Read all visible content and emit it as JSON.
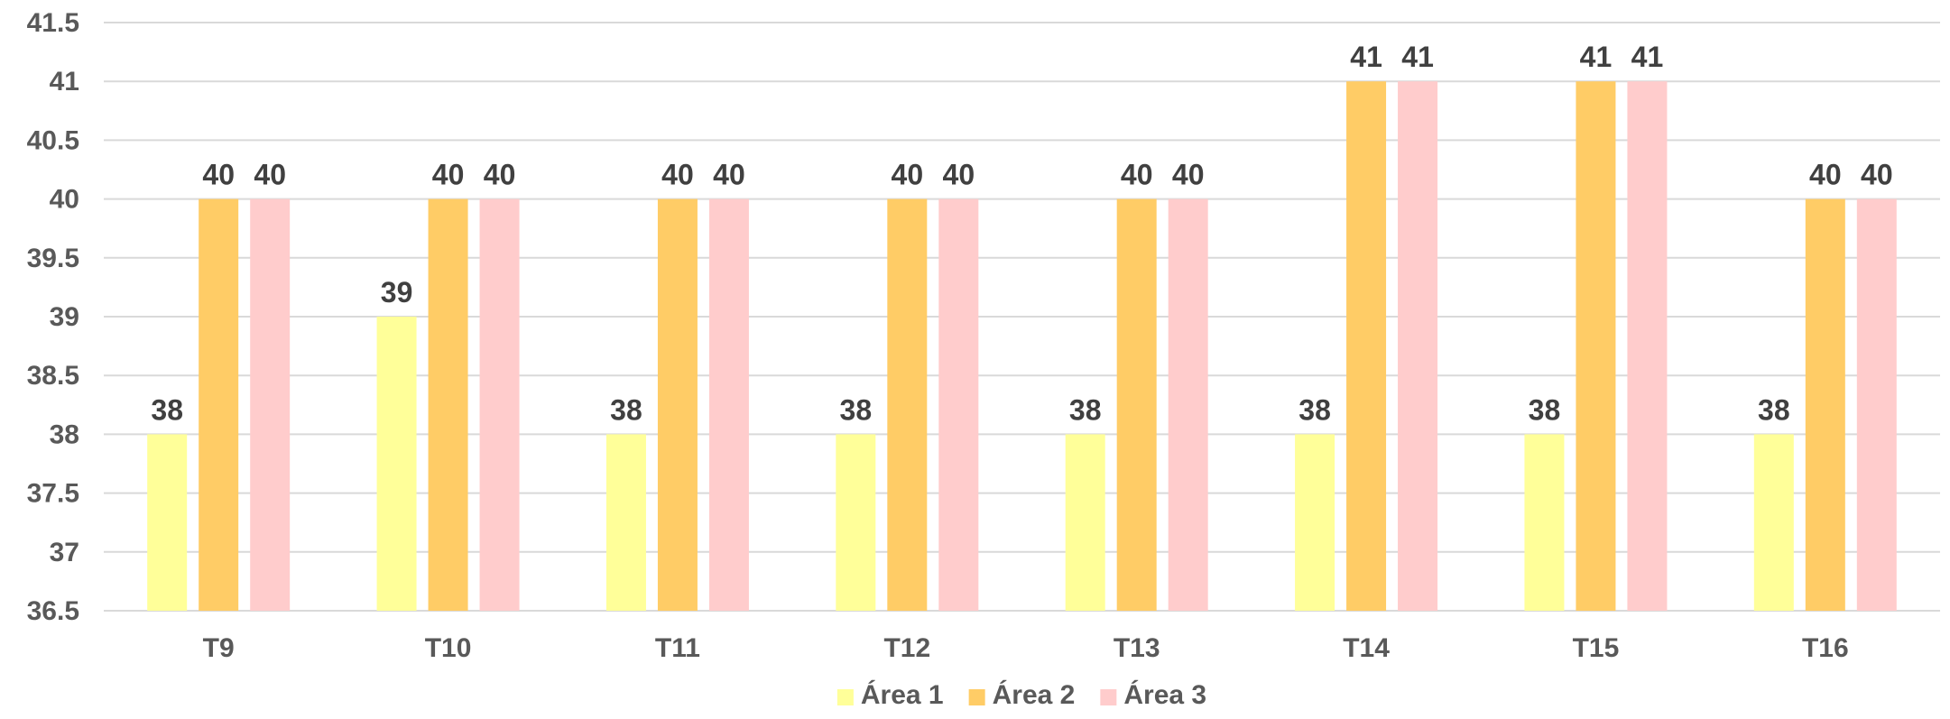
{
  "chart_data": {
    "type": "bar",
    "title": "",
    "xlabel": "",
    "ylabel": "",
    "categories": [
      "T9",
      "T10",
      "T11",
      "T12",
      "T13",
      "T14",
      "T15",
      "T16"
    ],
    "series": [
      {
        "name": "Área 1",
        "values": [
          38,
          39,
          38,
          38,
          38,
          38,
          38,
          38
        ],
        "color": "#ffff99"
      },
      {
        "name": "Área 2",
        "values": [
          40,
          40,
          40,
          40,
          40,
          41,
          41,
          40
        ],
        "color": "#ffcc66"
      },
      {
        "name": "Área 3",
        "values": [
          40,
          40,
          40,
          40,
          40,
          41,
          41,
          40
        ],
        "color": "#ffcccc"
      }
    ],
    "ylim": [
      36.5,
      41.5
    ],
    "yticks": [
      "36.5",
      "37",
      "37.5",
      "38",
      "38.5",
      "39",
      "39.5",
      "40",
      "40.5",
      "41",
      "41.5"
    ],
    "grid": true,
    "legend_position": "bottom",
    "data_labels": true
  }
}
